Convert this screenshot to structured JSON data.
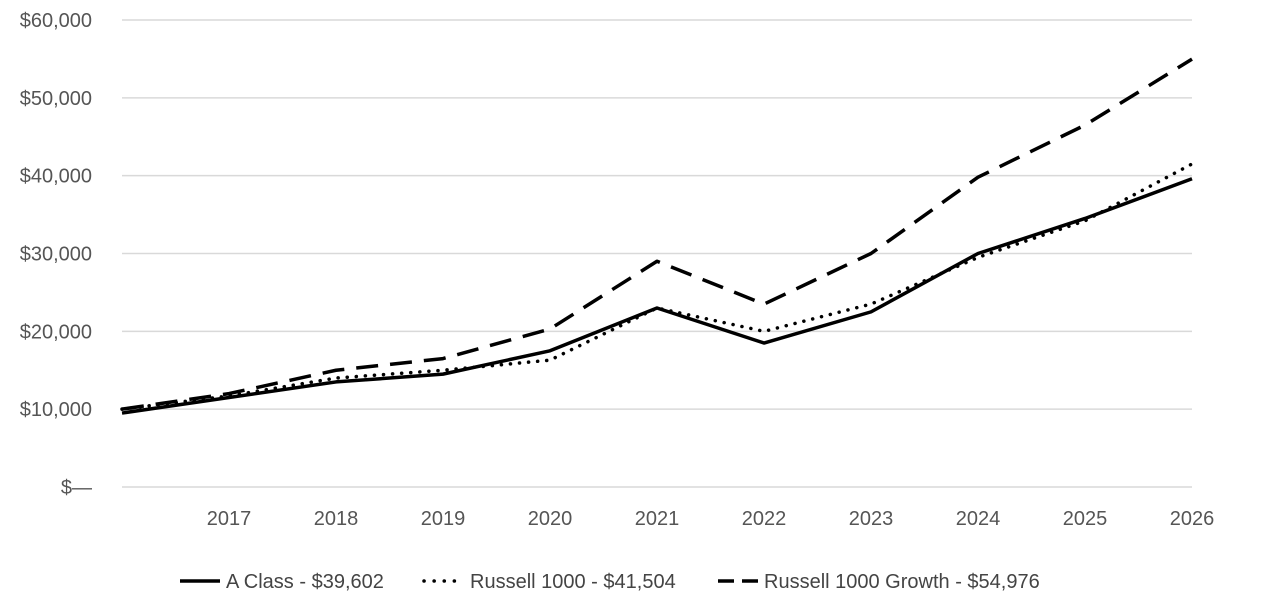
{
  "chart_data": {
    "type": "line",
    "x": [
      "2016",
      "2017",
      "2018",
      "2019",
      "2020",
      "2021",
      "2022",
      "2023",
      "2024",
      "2025",
      "2026"
    ],
    "x_tick_labels": [
      "2017",
      "2018",
      "2019",
      "2020",
      "2021",
      "2022",
      "2023",
      "2024",
      "2025",
      "2026"
    ],
    "y_tick_labels": [
      "$—",
      "$10,000",
      "$20,000",
      "$30,000",
      "$40,000",
      "$50,000",
      "$60,000"
    ],
    "ylim": [
      0,
      60000
    ],
    "grid": "horizontal",
    "legend_position": "bottom",
    "series": [
      {
        "name": "A Class - $39,602",
        "style": "solid",
        "values": [
          9500,
          11500,
          13500,
          14500,
          17500,
          23000,
          18500,
          22500,
          30000,
          34500,
          39602
        ]
      },
      {
        "name": "Russell 1000 - $41,504",
        "style": "dotted",
        "values": [
          10000,
          11700,
          14000,
          15000,
          16300,
          23000,
          20000,
          23500,
          29500,
          34200,
          41504
        ]
      },
      {
        "name": "Russell 1000 Growth - $54,976",
        "style": "dashed",
        "values": [
          10000,
          12000,
          15000,
          16500,
          20300,
          29000,
          23500,
          30000,
          39800,
          46500,
          54976
        ]
      }
    ],
    "color": "#000000"
  }
}
